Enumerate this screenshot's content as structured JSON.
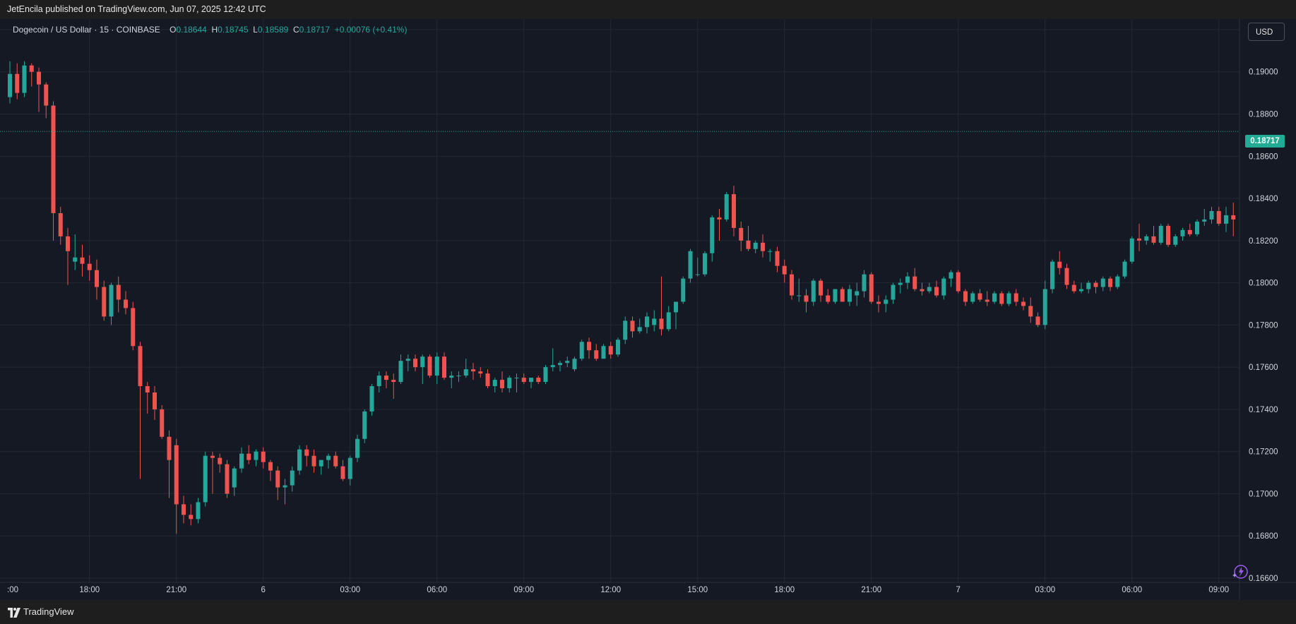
{
  "header": {
    "published_by": "JetEncila published on TradingView.com, Jun 07, 2025 12:42 UTC"
  },
  "legend": {
    "symbol": "Dogecoin / US Dollar · 15 · COINBASE",
    "o_label": "O",
    "o_value": "0.18644",
    "h_label": "H",
    "h_value": "0.18745",
    "l_label": "L",
    "l_value": "0.18589",
    "c_label": "C",
    "c_value": "0.18717",
    "change": "+0.00076 (+0.41%)"
  },
  "currency_button": {
    "label": "USD"
  },
  "last_price": {
    "label": "0.18717",
    "value": 0.18717
  },
  "footer": {
    "brand": "TradingView"
  },
  "colors": {
    "background": "#141923",
    "up": "#26a69a",
    "down": "#ef5350",
    "grid": "#232836",
    "last_price_line": "#22ab94"
  },
  "icons": {
    "ai": "sparkle-lightning-icon",
    "logo": "tradingview-logo-icon"
  },
  "chart_data": {
    "type": "candlestick",
    "title": "Dogecoin / US Dollar · 15 · COINBASE",
    "ylim": [
      0.1658,
      0.1925
    ],
    "y_ticks": [
      "0.19200",
      "0.19000",
      "0.18800",
      "0.18600",
      "0.18400",
      "0.18200",
      "0.18000",
      "0.17800",
      "0.17600",
      "0.17400",
      "0.17200",
      "0.17000",
      "0.16800",
      "0.16600"
    ],
    "x_ticks": [
      {
        "label": ":00",
        "index": 0
      },
      {
        "label": "18:00",
        "index": 11
      },
      {
        "label": "21:00",
        "index": 23
      },
      {
        "label": "6",
        "index": 35
      },
      {
        "label": "03:00",
        "index": 47
      },
      {
        "label": "06:00",
        "index": 59
      },
      {
        "label": "09:00",
        "index": 71
      },
      {
        "label": "12:00",
        "index": 83
      },
      {
        "label": "15:00",
        "index": 95
      },
      {
        "label": "18:00",
        "index": 107
      },
      {
        "label": "21:00",
        "index": 119
      },
      {
        "label": "7",
        "index": 131
      },
      {
        "label": "03:00",
        "index": 143
      },
      {
        "label": "06:00",
        "index": 155
      },
      {
        "label": "09:00",
        "index": 167
      },
      {
        "label": "12:00",
        "index": 179
      }
    ],
    "grid": true,
    "last_price": 0.18717,
    "ohlc": [
      [
        0.1888,
        0.1905,
        0.1885,
        0.1899
      ],
      [
        0.1899,
        0.1904,
        0.1887,
        0.189
      ],
      [
        0.189,
        0.1905,
        0.1888,
        0.1903
      ],
      [
        0.1903,
        0.1904,
        0.1893,
        0.19
      ],
      [
        0.19,
        0.1902,
        0.1881,
        0.1894
      ],
      [
        0.1894,
        0.1895,
        0.1878,
        0.1884
      ],
      [
        0.1884,
        0.1886,
        0.182,
        0.1833
      ],
      [
        0.1833,
        0.1836,
        0.1818,
        0.1822
      ],
      [
        0.1822,
        0.1826,
        0.1799,
        0.1815
      ],
      [
        0.181,
        0.1823,
        0.1806,
        0.1812
      ],
      [
        0.1812,
        0.1818,
        0.1803,
        0.1809
      ],
      [
        0.1809,
        0.1813,
        0.1801,
        0.1806
      ],
      [
        0.1806,
        0.1811,
        0.1792,
        0.1798
      ],
      [
        0.1798,
        0.1801,
        0.1782,
        0.1784
      ],
      [
        0.1784,
        0.18,
        0.178,
        0.1799
      ],
      [
        0.1799,
        0.1803,
        0.1786,
        0.1792
      ],
      [
        0.1792,
        0.1796,
        0.1785,
        0.1788
      ],
      [
        0.1788,
        0.1791,
        0.1768,
        0.177
      ],
      [
        0.177,
        0.1772,
        0.1707,
        0.1751
      ],
      [
        0.1751,
        0.1753,
        0.1738,
        0.1748
      ],
      [
        0.1748,
        0.1751,
        0.1735,
        0.174
      ],
      [
        0.174,
        0.1742,
        0.1726,
        0.1727
      ],
      [
        0.1727,
        0.173,
        0.1698,
        0.1716
      ],
      [
        0.1723,
        0.1726,
        0.1681,
        0.1695
      ],
      [
        0.1695,
        0.1699,
        0.1686,
        0.169
      ],
      [
        0.169,
        0.1695,
        0.1685,
        0.1688
      ],
      [
        0.1688,
        0.1698,
        0.1686,
        0.1696
      ],
      [
        0.1696,
        0.172,
        0.1694,
        0.1718
      ],
      [
        0.1718,
        0.172,
        0.17,
        0.1717
      ],
      [
        0.1717,
        0.1719,
        0.171,
        0.1714
      ],
      [
        0.1714,
        0.1716,
        0.1698,
        0.17
      ],
      [
        0.1703,
        0.1713,
        0.1699,
        0.1712
      ],
      [
        0.1712,
        0.1722,
        0.171,
        0.1719
      ],
      [
        0.1719,
        0.1723,
        0.1714,
        0.1716
      ],
      [
        0.1716,
        0.1721,
        0.1713,
        0.172
      ],
      [
        0.172,
        0.1722,
        0.1712,
        0.1715
      ],
      [
        0.1715,
        0.1716,
        0.1706,
        0.1711
      ],
      [
        0.1711,
        0.1713,
        0.1697,
        0.1703
      ],
      [
        0.1703,
        0.1707,
        0.1695,
        0.1704
      ],
      [
        0.1704,
        0.1713,
        0.1701,
        0.1711
      ],
      [
        0.1711,
        0.1723,
        0.1709,
        0.1721
      ],
      [
        0.1721,
        0.1723,
        0.1713,
        0.1718
      ],
      [
        0.1718,
        0.1721,
        0.171,
        0.1713
      ],
      [
        0.1713,
        0.1716,
        0.1709,
        0.1716
      ],
      [
        0.1716,
        0.1719,
        0.1712,
        0.1718
      ],
      [
        0.1718,
        0.172,
        0.1712,
        0.1713
      ],
      [
        0.1713,
        0.1716,
        0.1706,
        0.1707
      ],
      [
        0.1707,
        0.1718,
        0.1704,
        0.1717
      ],
      [
        0.1717,
        0.1728,
        0.1715,
        0.1726
      ],
      [
        0.1726,
        0.174,
        0.1724,
        0.1739
      ],
      [
        0.1739,
        0.1752,
        0.1737,
        0.1751
      ],
      [
        0.1751,
        0.1758,
        0.1748,
        0.1756
      ],
      [
        0.1756,
        0.1758,
        0.175,
        0.1754
      ],
      [
        0.1754,
        0.1757,
        0.1745,
        0.1753
      ],
      [
        0.1753,
        0.1766,
        0.1752,
        0.1763
      ],
      [
        0.1763,
        0.1766,
        0.1758,
        0.1764
      ],
      [
        0.1764,
        0.1766,
        0.1758,
        0.176
      ],
      [
        0.176,
        0.1766,
        0.1752,
        0.1765
      ],
      [
        0.1765,
        0.1766,
        0.1755,
        0.1756
      ],
      [
        0.1756,
        0.1767,
        0.1752,
        0.1765
      ],
      [
        0.1765,
        0.1767,
        0.1754,
        0.1755
      ],
      [
        0.1755,
        0.1758,
        0.175,
        0.1756
      ],
      [
        0.1756,
        0.1758,
        0.1753,
        0.1756
      ],
      [
        0.1756,
        0.1764,
        0.1755,
        0.1759
      ],
      [
        0.1759,
        0.1762,
        0.1754,
        0.1758
      ],
      [
        0.1758,
        0.176,
        0.1755,
        0.1757
      ],
      [
        0.1757,
        0.1759,
        0.175,
        0.1751
      ],
      [
        0.1751,
        0.1755,
        0.1748,
        0.1754
      ],
      [
        0.1754,
        0.1758,
        0.1748,
        0.175
      ],
      [
        0.175,
        0.1756,
        0.1748,
        0.1755
      ],
      [
        0.1755,
        0.1757,
        0.1748,
        0.1755
      ],
      [
        0.1755,
        0.1757,
        0.1752,
        0.1753
      ],
      [
        0.1753,
        0.1755,
        0.175,
        0.1755
      ],
      [
        0.1755,
        0.1756,
        0.1752,
        0.1753
      ],
      [
        0.1753,
        0.1761,
        0.1752,
        0.176
      ],
      [
        0.176,
        0.1769,
        0.1758,
        0.1761
      ],
      [
        0.1761,
        0.1763,
        0.1758,
        0.1762
      ],
      [
        0.1762,
        0.1765,
        0.176,
        0.1763
      ],
      [
        0.1759,
        0.1765,
        0.1758,
        0.1764
      ],
      [
        0.1764,
        0.1773,
        0.1763,
        0.1772
      ],
      [
        0.1772,
        0.1774,
        0.1764,
        0.1768
      ],
      [
        0.1768,
        0.1771,
        0.1763,
        0.1764
      ],
      [
        0.1764,
        0.1771,
        0.1764,
        0.177
      ],
      [
        0.177,
        0.1772,
        0.1764,
        0.1766
      ],
      [
        0.1766,
        0.1774,
        0.1765,
        0.1773
      ],
      [
        0.1773,
        0.1784,
        0.1771,
        0.1782
      ],
      [
        0.1782,
        0.1784,
        0.1774,
        0.1777
      ],
      [
        0.1777,
        0.1783,
        0.1776,
        0.1779
      ],
      [
        0.1779,
        0.1786,
        0.1776,
        0.1784
      ],
      [
        0.178,
        0.1787,
        0.1777,
        0.1783
      ],
      [
        0.1783,
        0.1803,
        0.1775,
        0.1778
      ],
      [
        0.1778,
        0.1789,
        0.1777,
        0.1786
      ],
      [
        0.1786,
        0.1791,
        0.1778,
        0.1791
      ],
      [
        0.1791,
        0.1803,
        0.179,
        0.1802
      ],
      [
        0.1802,
        0.1816,
        0.18,
        0.1815
      ],
      [
        0.1804,
        0.1812,
        0.1803,
        0.1804
      ],
      [
        0.1804,
        0.1815,
        0.1803,
        0.1814
      ],
      [
        0.1814,
        0.1832,
        0.181,
        0.1831
      ],
      [
        0.1831,
        0.1835,
        0.182,
        0.183
      ],
      [
        0.183,
        0.1843,
        0.1829,
        0.1842
      ],
      [
        0.1842,
        0.1846,
        0.1822,
        0.1826
      ],
      [
        0.1826,
        0.1829,
        0.1815,
        0.182
      ],
      [
        0.182,
        0.1827,
        0.1815,
        0.1816
      ],
      [
        0.1816,
        0.182,
        0.1814,
        0.1819
      ],
      [
        0.1819,
        0.1823,
        0.1812,
        0.1815
      ],
      [
        0.1815,
        0.1816,
        0.181,
        0.1815
      ],
      [
        0.1815,
        0.1817,
        0.1805,
        0.1808
      ],
      [
        0.1808,
        0.1811,
        0.18,
        0.1804
      ],
      [
        0.1804,
        0.1806,
        0.1792,
        0.1794
      ],
      [
        0.1794,
        0.1802,
        0.1791,
        0.1794
      ],
      [
        0.1794,
        0.1797,
        0.1786,
        0.1791
      ],
      [
        0.1791,
        0.1802,
        0.1789,
        0.1801
      ],
      [
        0.1801,
        0.1802,
        0.1791,
        0.1794
      ],
      [
        0.1794,
        0.1797,
        0.179,
        0.1791
      ],
      [
        0.1791,
        0.1797,
        0.179,
        0.1797
      ],
      [
        0.1797,
        0.1798,
        0.1791,
        0.1791
      ],
      [
        0.1791,
        0.1799,
        0.1789,
        0.1797
      ],
      [
        0.1794,
        0.18,
        0.1789,
        0.1796
      ],
      [
        0.1796,
        0.1806,
        0.1793,
        0.1804
      ],
      [
        0.1804,
        0.1805,
        0.179,
        0.1791
      ],
      [
        0.1791,
        0.1794,
        0.1786,
        0.179
      ],
      [
        0.179,
        0.1794,
        0.1786,
        0.1792
      ],
      [
        0.1792,
        0.18,
        0.179,
        0.1799
      ],
      [
        0.1799,
        0.1802,
        0.1795,
        0.18
      ],
      [
        0.18,
        0.1805,
        0.1797,
        0.1803
      ],
      [
        0.1803,
        0.1807,
        0.1796,
        0.1797
      ],
      [
        0.1797,
        0.18,
        0.1794,
        0.1796
      ],
      [
        0.1796,
        0.18,
        0.1795,
        0.1798
      ],
      [
        0.1798,
        0.1801,
        0.1793,
        0.1794
      ],
      [
        0.1794,
        0.1803,
        0.1792,
        0.1802
      ],
      [
        0.1802,
        0.1806,
        0.1798,
        0.1805
      ],
      [
        0.1805,
        0.1806,
        0.1795,
        0.1796
      ],
      [
        0.1796,
        0.1797,
        0.1789,
        0.1791
      ],
      [
        0.1791,
        0.1796,
        0.179,
        0.1795
      ],
      [
        0.1795,
        0.1797,
        0.1791,
        0.1792
      ],
      [
        0.1792,
        0.1796,
        0.1789,
        0.1791
      ],
      [
        0.1791,
        0.1796,
        0.179,
        0.1795
      ],
      [
        0.1795,
        0.1796,
        0.1789,
        0.179
      ],
      [
        0.179,
        0.1796,
        0.1789,
        0.1795
      ],
      [
        0.1795,
        0.1797,
        0.1789,
        0.1791
      ],
      [
        0.1791,
        0.1793,
        0.1787,
        0.1789
      ],
      [
        0.1789,
        0.1793,
        0.1781,
        0.1784
      ],
      [
        0.1784,
        0.1786,
        0.1779,
        0.178
      ],
      [
        0.178,
        0.1801,
        0.1778,
        0.1797
      ],
      [
        0.1797,
        0.1811,
        0.1795,
        0.181
      ],
      [
        0.181,
        0.1815,
        0.1804,
        0.1807
      ],
      [
        0.1807,
        0.1809,
        0.1797,
        0.1799
      ],
      [
        0.1799,
        0.1801,
        0.1795,
        0.1796
      ],
      [
        0.1796,
        0.18,
        0.1795,
        0.1797
      ],
      [
        0.1797,
        0.1801,
        0.1795,
        0.18
      ],
      [
        0.18,
        0.1801,
        0.1795,
        0.1798
      ],
      [
        0.1798,
        0.1803,
        0.1796,
        0.1802
      ],
      [
        0.1802,
        0.1803,
        0.1796,
        0.1798
      ],
      [
        0.1798,
        0.1804,
        0.1797,
        0.1803
      ],
      [
        0.1803,
        0.1811,
        0.1802,
        0.181
      ],
      [
        0.181,
        0.1822,
        0.1809,
        0.1821
      ],
      [
        0.1821,
        0.1828,
        0.1815,
        0.182
      ],
      [
        0.182,
        0.1823,
        0.1818,
        0.1822
      ],
      [
        0.1822,
        0.1827,
        0.1818,
        0.1819
      ],
      [
        0.1819,
        0.1828,
        0.1818,
        0.1827
      ],
      [
        0.1827,
        0.1828,
        0.1817,
        0.1818
      ],
      [
        0.1818,
        0.1823,
        0.1817,
        0.1822
      ],
      [
        0.1822,
        0.1826,
        0.182,
        0.1825
      ],
      [
        0.1825,
        0.1828,
        0.1822,
        0.1823
      ],
      [
        0.1823,
        0.183,
        0.1822,
        0.1829
      ],
      [
        0.1829,
        0.1835,
        0.1827,
        0.183
      ],
      [
        0.183,
        0.1836,
        0.1828,
        0.1834
      ],
      [
        0.1834,
        0.1836,
        0.1827,
        0.1828
      ],
      [
        0.1828,
        0.1836,
        0.1824,
        0.1832
      ],
      [
        0.1832,
        0.1838,
        0.1822,
        0.183
      ]
    ]
  }
}
